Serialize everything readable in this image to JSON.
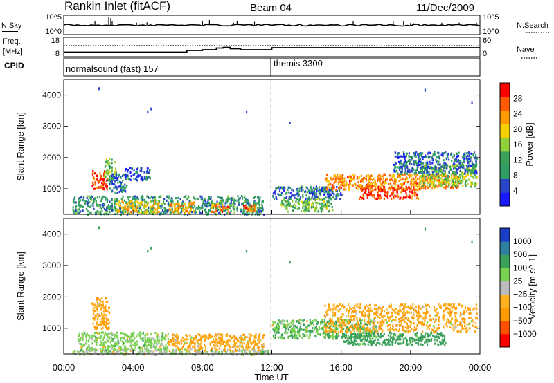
{
  "header": {
    "station": "Rankin Inlet (fitACF)",
    "beam": "Beam 04",
    "date": "11/Dec/2009"
  },
  "noise_panel": {
    "left_label": "N.Sky",
    "right_label": "N.Search",
    "left_ticks": [
      "10^5",
      "10^0"
    ],
    "right_ticks": [
      "10^5",
      "10^0"
    ]
  },
  "freq_panel": {
    "left_label_1": "Freq.",
    "left_label_2": "[MHz]",
    "right_label": "Nave",
    "left_ticks": [
      "18",
      "8"
    ],
    "right_ticks": [
      "60",
      "0"
    ]
  },
  "cpid_panel": {
    "label": "CPID",
    "segments": [
      {
        "name": "normalsound (fast) 157",
        "start_hour": 0
      },
      {
        "name": "themis 3300",
        "start_hour": 12
      }
    ]
  },
  "colors": {
    "power": [
      "#1a1aff",
      "#2a45c8",
      "#2f9e64",
      "#3aa05a",
      "#8fd13a",
      "#f5d000",
      "#ff9a00",
      "#ff5a00",
      "#ff0000"
    ],
    "velocity": [
      "#ff0000",
      "#ff5000",
      "#ff9a00",
      "#ffb020",
      "#bcbcbc",
      "#79d150",
      "#3aa05a",
      "#2f7fa0",
      "#1a3ec8"
    ],
    "grid_line": "#b4b4b4",
    "trace": "#000000"
  },
  "chart_data": [
    {
      "type": "heatmap",
      "name": "power",
      "ylabel": "Slant Range [km]",
      "y_ticks": [
        1000,
        2000,
        3000,
        4000
      ],
      "ylim": [
        180,
        4500
      ],
      "xlim": [
        0,
        24
      ],
      "colorbar_label": "Power [dB]",
      "colorbar_ticks": [
        4,
        8,
        12,
        16,
        20,
        24,
        28
      ],
      "colorbar_range": [
        0,
        32
      ],
      "regions": [
        {
          "x": [
            1.6,
            2.5
          ],
          "y": [
            1000,
            1600
          ],
          "value": 28
        },
        {
          "x": [
            2.3,
            3.0
          ],
          "y": [
            1300,
            2000
          ],
          "value": 14
        },
        {
          "x": [
            2.6,
            3.6
          ],
          "y": [
            900,
            1500
          ],
          "value": 7
        },
        {
          "x": [
            3.5,
            5.0
          ],
          "y": [
            1300,
            1700
          ],
          "value": 5
        },
        {
          "x": [
            0.5,
            11.5
          ],
          "y": [
            200,
            800
          ],
          "value": 10
        },
        {
          "x": [
            3.0,
            5.5
          ],
          "y": [
            250,
            650
          ],
          "value": 20
        },
        {
          "x": [
            6.0,
            7.5
          ],
          "y": [
            250,
            600
          ],
          "value": 22
        },
        {
          "x": [
            8.5,
            9.5
          ],
          "y": [
            250,
            550
          ],
          "value": 24
        },
        {
          "x": [
            10.3,
            11.0
          ],
          "y": [
            300,
            500
          ],
          "value": 26
        },
        {
          "x": [
            12.0,
            16.0
          ],
          "y": [
            700,
            1100
          ],
          "value": 7
        },
        {
          "x": [
            12.5,
            15.5
          ],
          "y": [
            300,
            700
          ],
          "value": 14
        },
        {
          "x": [
            15.0,
            22.8
          ],
          "y": [
            1000,
            1500
          ],
          "value": 24
        },
        {
          "x": [
            17.0,
            20.5
          ],
          "y": [
            700,
            1100
          ],
          "value": 28
        },
        {
          "x": [
            20.5,
            23.8
          ],
          "y": [
            1100,
            1800
          ],
          "value": 16
        },
        {
          "x": [
            19.0,
            23.8
          ],
          "y": [
            1500,
            2200
          ],
          "value": 7
        }
      ]
    },
    {
      "type": "heatmap",
      "name": "velocity",
      "ylabel": "Slant Range [km]",
      "y_ticks": [
        1000,
        2000,
        3000,
        4000
      ],
      "ylim": [
        180,
        4500
      ],
      "xlim": [
        0,
        24
      ],
      "xlabel": "Time UT",
      "x_ticks": [
        "00:00",
        "04:00",
        "08:00",
        "12:00",
        "16:00",
        "20:00",
        "00:00"
      ],
      "colorbar_label": "Velocity [m s^-1]",
      "colorbar_ticks": [
        "1000",
        "500",
        "100",
        "25",
        "−25",
        "−100",
        "−500",
        "−1000"
      ],
      "regions": [
        {
          "x": [
            1.6,
            2.6
          ],
          "y": [
            1000,
            2000
          ],
          "value": -100
        },
        {
          "x": [
            0.8,
            6.0
          ],
          "y": [
            300,
            900
          ],
          "value": 50
        },
        {
          "x": [
            6.0,
            11.5
          ],
          "y": [
            300,
            850
          ],
          "value": -100
        },
        {
          "x": [
            0.5,
            12.0
          ],
          "y": [
            180,
            350
          ],
          "value": 20
        },
        {
          "x": [
            12.0,
            18.0
          ],
          "y": [
            700,
            1300
          ],
          "value": 100
        },
        {
          "x": [
            15.0,
            23.8
          ],
          "y": [
            900,
            1800
          ],
          "value": -100
        },
        {
          "x": [
            16.0,
            22.0
          ],
          "y": [
            500,
            900
          ],
          "value": 200
        }
      ]
    }
  ]
}
